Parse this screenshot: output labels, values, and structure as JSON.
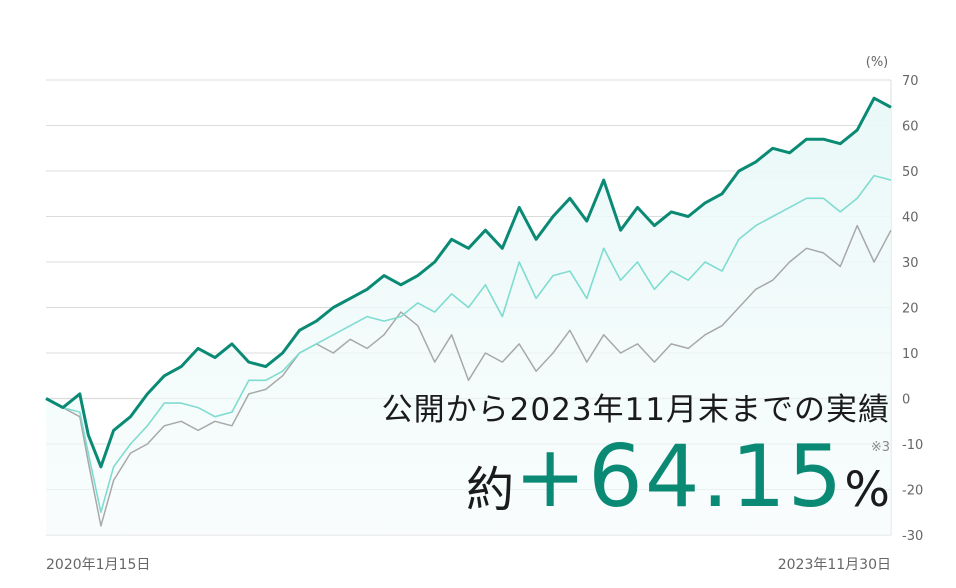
{
  "overlay": {
    "title": "公開から2023年11月末までの実績",
    "prefix": "約",
    "value": "+64.15",
    "unit": "%",
    "note": "※3"
  },
  "chart_data": {
    "type": "line",
    "unit_label": "(%)",
    "xlabel": "",
    "ylabel": "",
    "x_start_label": "2020年1月15日",
    "x_end_label": "2023年11月30日",
    "ylim": [
      -30,
      70
    ],
    "yticks": [
      70,
      60,
      50,
      40,
      30,
      20,
      10,
      0,
      -10,
      -20,
      -30
    ],
    "grid": true,
    "colors": {
      "fund": "#0a8a74",
      "benchmark": "#7fdcd0",
      "index": "#a8a8a8",
      "fill": "#e6f7f7",
      "grid": "#dcdcdc"
    },
    "x_tick_positions": [
      0,
      1
    ],
    "series": [
      {
        "key": "fund",
        "x": [
          0.0,
          0.02,
          0.04,
          0.05,
          0.065,
          0.08,
          0.1,
          0.12,
          0.14,
          0.16,
          0.18,
          0.2,
          0.22,
          0.24,
          0.26,
          0.28,
          0.3,
          0.32,
          0.34,
          0.36,
          0.38,
          0.4,
          0.42,
          0.44,
          0.46,
          0.48,
          0.5,
          0.52,
          0.54,
          0.56,
          0.58,
          0.6,
          0.62,
          0.64,
          0.66,
          0.68,
          0.7,
          0.72,
          0.74,
          0.76,
          0.78,
          0.8,
          0.82,
          0.84,
          0.86,
          0.88,
          0.9,
          0.92,
          0.94,
          0.96,
          0.98,
          1.0
        ],
        "values": [
          0,
          -2,
          1,
          -8,
          -15,
          -7,
          -4,
          1,
          5,
          7,
          11,
          9,
          12,
          8,
          7,
          10,
          15,
          17,
          20,
          22,
          24,
          27,
          25,
          27,
          30,
          35,
          33,
          37,
          33,
          42,
          35,
          40,
          44,
          39,
          48,
          37,
          42,
          38,
          41,
          40,
          43,
          45,
          50,
          52,
          55,
          54,
          57,
          57,
          56,
          59,
          66,
          64
        ]
      },
      {
        "key": "benchmark",
        "x": [
          0.0,
          0.02,
          0.04,
          0.05,
          0.065,
          0.08,
          0.1,
          0.12,
          0.14,
          0.16,
          0.18,
          0.2,
          0.22,
          0.24,
          0.26,
          0.28,
          0.3,
          0.32,
          0.34,
          0.36,
          0.38,
          0.4,
          0.42,
          0.44,
          0.46,
          0.48,
          0.5,
          0.52,
          0.54,
          0.56,
          0.58,
          0.6,
          0.62,
          0.64,
          0.66,
          0.68,
          0.7,
          0.72,
          0.74,
          0.76,
          0.78,
          0.8,
          0.82,
          0.84,
          0.86,
          0.88,
          0.9,
          0.92,
          0.94,
          0.96,
          0.98,
          1.0
        ],
        "values": [
          0,
          -2,
          -3,
          -12,
          -25,
          -15,
          -10,
          -6,
          -1,
          -1,
          -2,
          -4,
          -3,
          4,
          4,
          6,
          10,
          12,
          14,
          16,
          18,
          17,
          18,
          21,
          19,
          23,
          20,
          25,
          18,
          30,
          22,
          27,
          28,
          22,
          33,
          26,
          30,
          24,
          28,
          26,
          30,
          28,
          35,
          38,
          40,
          42,
          44,
          44,
          41,
          44,
          49,
          48
        ]
      },
      {
        "key": "index",
        "x": [
          0.0,
          0.02,
          0.04,
          0.05,
          0.065,
          0.08,
          0.1,
          0.12,
          0.14,
          0.16,
          0.18,
          0.2,
          0.22,
          0.24,
          0.26,
          0.28,
          0.3,
          0.32,
          0.34,
          0.36,
          0.38,
          0.4,
          0.42,
          0.44,
          0.46,
          0.48,
          0.5,
          0.52,
          0.54,
          0.56,
          0.58,
          0.6,
          0.62,
          0.64,
          0.66,
          0.68,
          0.7,
          0.72,
          0.74,
          0.76,
          0.78,
          0.8,
          0.82,
          0.84,
          0.86,
          0.88,
          0.9,
          0.92,
          0.94,
          0.96,
          0.98,
          1.0
        ],
        "values": [
          0,
          -2,
          -4,
          -14,
          -28,
          -18,
          -12,
          -10,
          -6,
          -5,
          -7,
          -5,
          -6,
          1,
          2,
          5,
          10,
          12,
          10,
          13,
          11,
          14,
          19,
          16,
          8,
          14,
          4,
          10,
          8,
          12,
          6,
          10,
          15,
          8,
          14,
          10,
          12,
          8,
          12,
          11,
          14,
          16,
          20,
          24,
          26,
          30,
          33,
          32,
          29,
          38,
          30,
          37
        ]
      }
    ]
  }
}
